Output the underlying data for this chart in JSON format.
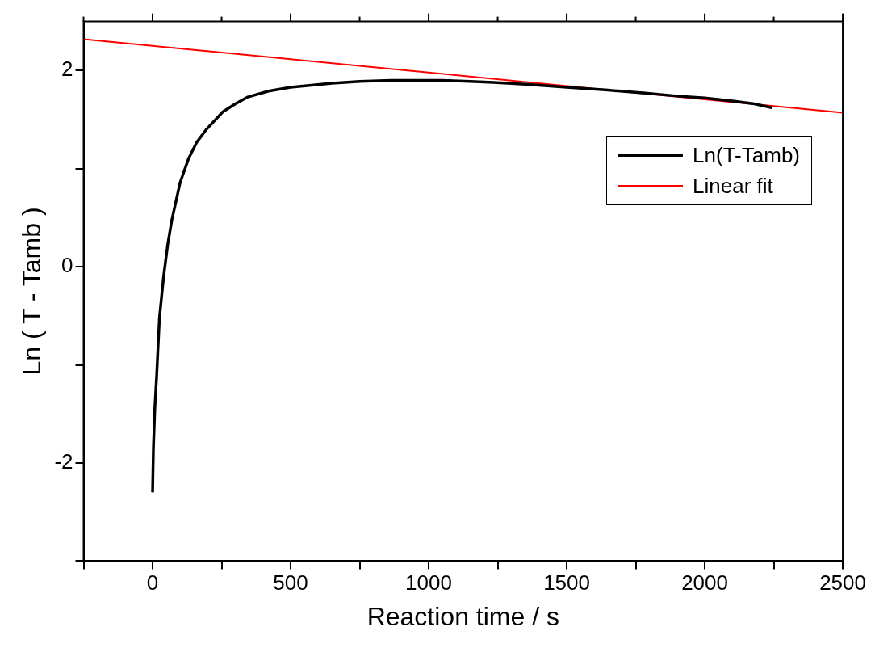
{
  "chart_data": {
    "type": "line",
    "xlabel": "Reaction time / s",
    "ylabel": "Ln ( T - Tamb )",
    "xlim": [
      -250,
      2500
    ],
    "ylim": [
      -3,
      2.5
    ],
    "xticks": [
      {
        "value": -250,
        "label": null
      },
      0,
      {
        "value": 250,
        "label": null
      },
      500,
      {
        "value": 750,
        "label": null
      },
      1000,
      {
        "value": 1250,
        "label": null
      },
      1500,
      {
        "value": 1750,
        "label": null
      },
      2000,
      {
        "value": 2250,
        "label": null
      },
      2500
    ],
    "yticks": [
      {
        "value": -3,
        "label": null
      },
      -2,
      {
        "value": -1,
        "label": null
      },
      0,
      {
        "value": 1,
        "label": null
      },
      2
    ],
    "grid": false,
    "legend": "right",
    "marker": "none",
    "series": [
      {
        "name": "Ln(T-Tamb)",
        "color": "#000000",
        "x": [
          0,
          3,
          8,
          15,
          25,
          40,
          55,
          70,
          100,
          130,
          160,
          195,
          255,
          300,
          345,
          420,
          500,
          575,
          650,
          750,
          865,
          950,
          1050,
          1150,
          1235,
          1350,
          1500,
          1650,
          1785,
          1900,
          2000,
          2100,
          2180,
          2245
        ],
        "values": [
          -2.3,
          -1.85,
          -1.45,
          -1.1,
          -0.52,
          -0.1,
          0.23,
          0.48,
          0.86,
          1.1,
          1.27,
          1.4,
          1.58,
          1.66,
          1.73,
          1.79,
          1.83,
          1.85,
          1.87,
          1.89,
          1.9,
          1.9,
          1.9,
          1.89,
          1.88,
          1.86,
          1.83,
          1.8,
          1.77,
          1.74,
          1.72,
          1.69,
          1.66,
          1.62
        ]
      },
      {
        "name": "Linear fit",
        "color": "#ff0000",
        "x": [
          -250,
          2500
        ],
        "values": [
          2.32,
          1.57
        ]
      }
    ]
  }
}
